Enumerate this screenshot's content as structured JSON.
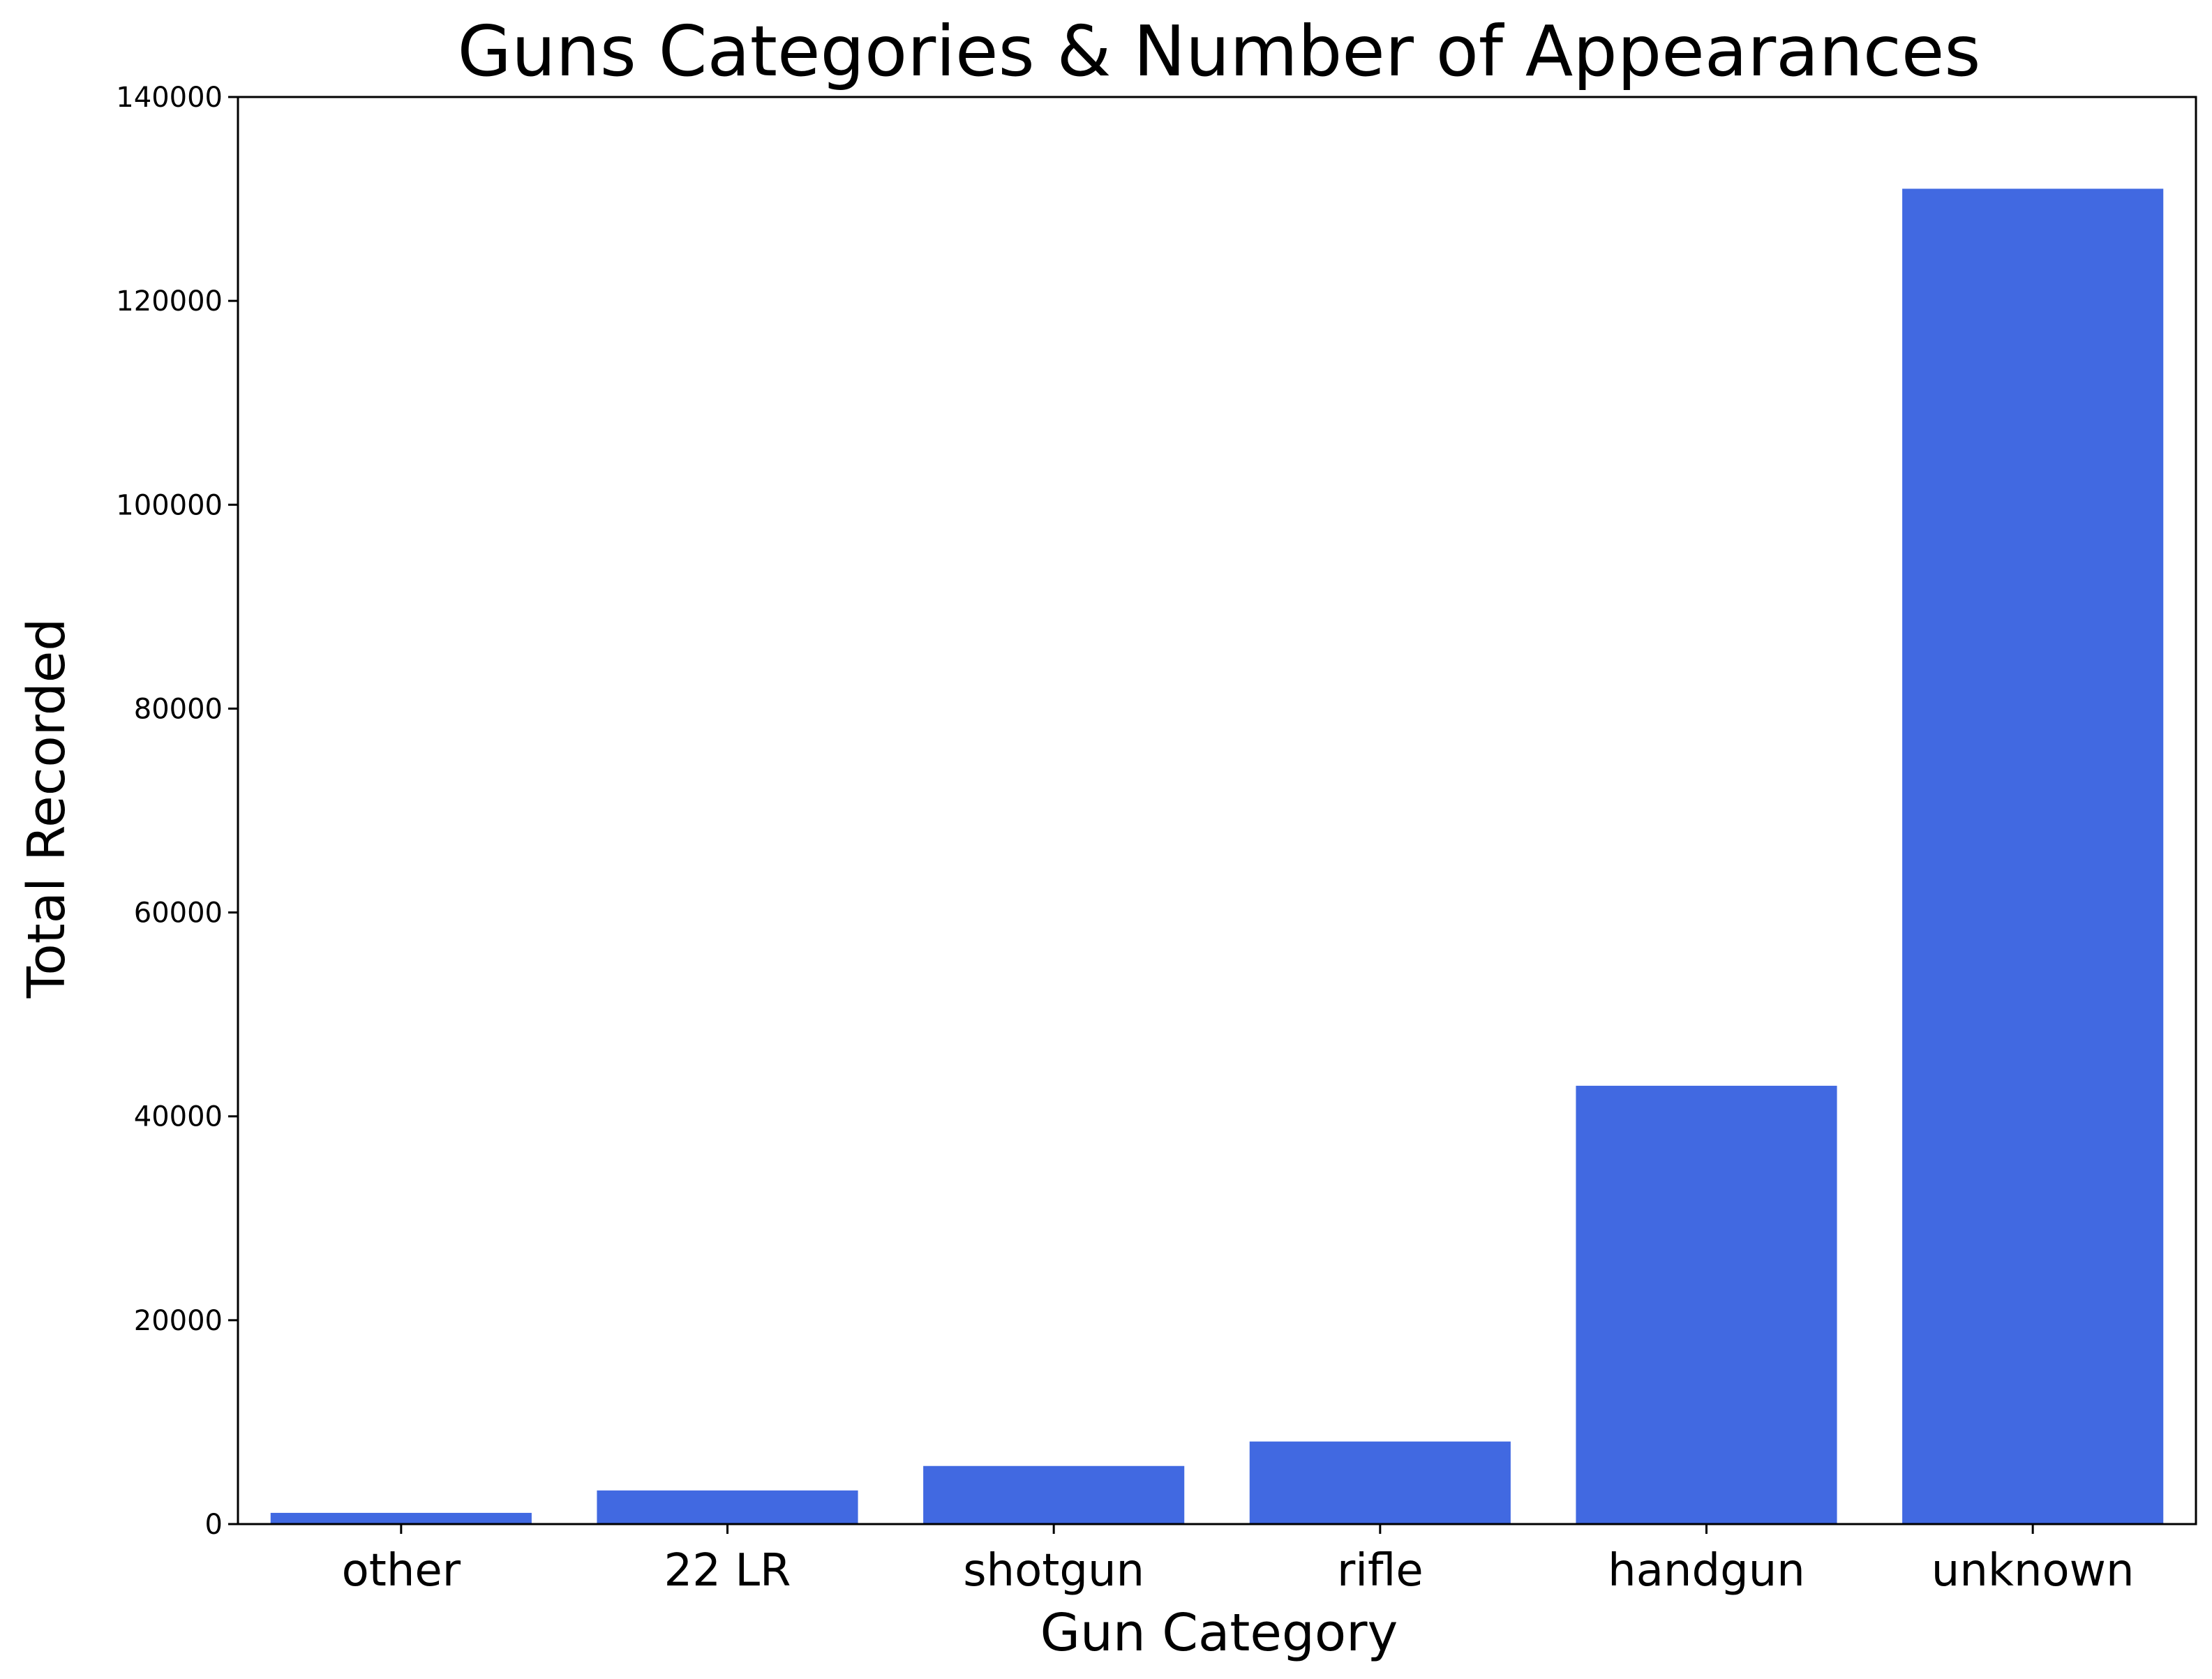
{
  "chart_data": {
    "type": "bar",
    "title": "Guns Categories & Number of Appearances",
    "xlabel": "Gun Category",
    "ylabel": "Total Recorded",
    "categories": [
      "other",
      "22 LR",
      "shotgun",
      "rifle",
      "handgun",
      "unknown"
    ],
    "values": [
      1100,
      3300,
      5700,
      8100,
      43000,
      131000
    ],
    "ylim": [
      0,
      140000
    ],
    "yticks": [
      0,
      20000,
      40000,
      60000,
      80000,
      100000,
      120000,
      140000
    ],
    "ytick_labels": [
      "0",
      "20000",
      "40000",
      "60000",
      "80000",
      "100000",
      "120000",
      "140000"
    ],
    "grid": false,
    "legend": "none",
    "bar_color": "#4169e1"
  }
}
